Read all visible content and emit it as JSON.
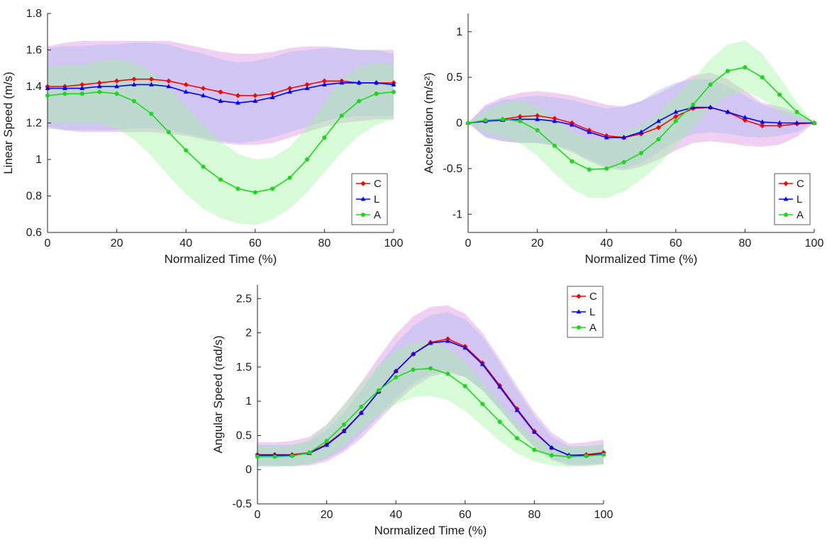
{
  "chart_data": [
    {
      "type": "line",
      "xlabel": "Normalized Time (%)",
      "ylabel": "Linear Speed (m/s)",
      "xlim": [
        0,
        100
      ],
      "ylim": [
        0.6,
        1.8
      ],
      "xticks": [
        "0",
        "20",
        "40",
        "60",
        "80",
        "100"
      ],
      "yticks": [
        "0.6",
        "0.8",
        "1",
        "1.2",
        "1.4",
        "1.6",
        "1.8"
      ],
      "legend_position": "bottom-right",
      "x": [
        0,
        5,
        10,
        15,
        20,
        25,
        30,
        35,
        40,
        45,
        50,
        55,
        60,
        65,
        70,
        75,
        80,
        85,
        90,
        95,
        100
      ],
      "series": [
        {
          "name": "C",
          "color": "#ff0000",
          "marker": "diamond",
          "values": [
            1.4,
            1.4,
            1.41,
            1.42,
            1.43,
            1.44,
            1.44,
            1.43,
            1.41,
            1.39,
            1.37,
            1.35,
            1.35,
            1.36,
            1.39,
            1.41,
            1.43,
            1.43,
            1.42,
            1.42,
            1.42
          ],
          "band": {
            "lower": [
              1.18,
              1.16,
              1.15,
              1.15,
              1.15,
              1.15,
              1.15,
              1.14,
              1.13,
              1.11,
              1.09,
              1.08,
              1.08,
              1.09,
              1.12,
              1.15,
              1.18,
              1.2,
              1.21,
              1.22,
              1.22
            ],
            "upper": [
              1.62,
              1.64,
              1.65,
              1.65,
              1.65,
              1.65,
              1.65,
              1.65,
              1.63,
              1.61,
              1.59,
              1.58,
              1.58,
              1.59,
              1.61,
              1.62,
              1.62,
              1.61,
              1.6,
              1.6,
              1.6
            ]
          }
        },
        {
          "name": "L",
          "color": "#0000ff",
          "marker": "triangle",
          "values": [
            1.39,
            1.39,
            1.39,
            1.4,
            1.4,
            1.41,
            1.41,
            1.4,
            1.37,
            1.35,
            1.32,
            1.31,
            1.32,
            1.34,
            1.37,
            1.39,
            1.41,
            1.42,
            1.42,
            1.42,
            1.41
          ],
          "band": {
            "lower": [
              1.17,
              1.16,
              1.16,
              1.16,
              1.16,
              1.17,
              1.17,
              1.16,
              1.14,
              1.12,
              1.1,
              1.09,
              1.1,
              1.12,
              1.15,
              1.18,
              1.21,
              1.23,
              1.24,
              1.24,
              1.24
            ],
            "upper": [
              1.61,
              1.62,
              1.62,
              1.63,
              1.63,
              1.64,
              1.64,
              1.63,
              1.6,
              1.58,
              1.55,
              1.53,
              1.54,
              1.56,
              1.59,
              1.6,
              1.61,
              1.61,
              1.6,
              1.6,
              1.58
            ]
          }
        },
        {
          "name": "A",
          "color": "#1ed61e",
          "marker": "circle",
          "values": [
            1.35,
            1.36,
            1.36,
            1.37,
            1.36,
            1.32,
            1.25,
            1.15,
            1.05,
            0.96,
            0.89,
            0.84,
            0.82,
            0.84,
            0.9,
            1.0,
            1.12,
            1.24,
            1.32,
            1.36,
            1.37
          ],
          "band": {
            "lower": [
              1.2,
              1.2,
              1.2,
              1.2,
              1.17,
              1.11,
              1.02,
              0.91,
              0.81,
              0.73,
              0.68,
              0.65,
              0.64,
              0.67,
              0.73,
              0.82,
              0.93,
              1.04,
              1.13,
              1.19,
              1.22
            ],
            "upper": [
              1.5,
              1.52,
              1.52,
              1.54,
              1.55,
              1.53,
              1.48,
              1.39,
              1.29,
              1.19,
              1.1,
              1.03,
              1.0,
              1.01,
              1.07,
              1.18,
              1.31,
              1.44,
              1.51,
              1.53,
              1.52
            ]
          }
        }
      ]
    },
    {
      "type": "line",
      "xlabel": "Normalized Time (%)",
      "ylabel": "Acceleration (m/s²)",
      "xlim": [
        0,
        100
      ],
      "ylim": [
        -1.2,
        1.2
      ],
      "xticks": [
        "0",
        "20",
        "40",
        "60",
        "80",
        "100"
      ],
      "yticks": [
        "-1",
        "-0.5",
        "0",
        "0.5",
        "1"
      ],
      "legend_position": "bottom-right",
      "x": [
        0,
        5,
        10,
        15,
        20,
        25,
        30,
        35,
        40,
        45,
        50,
        55,
        60,
        65,
        70,
        75,
        80,
        85,
        90,
        95,
        100
      ],
      "series": [
        {
          "name": "C",
          "color": "#ff0000",
          "marker": "diamond",
          "values": [
            0,
            0.02,
            0.04,
            0.07,
            0.08,
            0.05,
            0,
            -0.08,
            -0.14,
            -0.16,
            -0.12,
            -0.05,
            0.07,
            0.16,
            0.17,
            0.12,
            0.03,
            -0.03,
            -0.03,
            -0.01,
            0
          ],
          "band": {
            "lower": [
              0,
              -0.15,
              -0.2,
              -0.22,
              -0.22,
              -0.25,
              -0.32,
              -0.42,
              -0.5,
              -0.52,
              -0.48,
              -0.4,
              -0.3,
              -0.22,
              -0.2,
              -0.22,
              -0.25,
              -0.26,
              -0.24,
              -0.15,
              0
            ],
            "upper": [
              0,
              0.2,
              0.28,
              0.33,
              0.35,
              0.33,
              0.3,
              0.25,
              0.2,
              0.18,
              0.24,
              0.32,
              0.42,
              0.52,
              0.55,
              0.48,
              0.35,
              0.22,
              0.18,
              0.12,
              0
            ]
          }
        },
        {
          "name": "L",
          "color": "#0000ff",
          "marker": "triangle",
          "values": [
            0,
            0.02,
            0.03,
            0.04,
            0.04,
            0.02,
            -0.02,
            -0.1,
            -0.16,
            -0.16,
            -0.1,
            0.02,
            0.12,
            0.17,
            0.17,
            0.12,
            0.06,
            0.01,
            0,
            0,
            0
          ],
          "band": {
            "lower": [
              0,
              -0.16,
              -0.2,
              -0.22,
              -0.22,
              -0.24,
              -0.3,
              -0.4,
              -0.48,
              -0.5,
              -0.44,
              -0.32,
              -0.2,
              -0.12,
              -0.1,
              -0.12,
              -0.15,
              -0.16,
              -0.14,
              -0.1,
              0
            ],
            "upper": [
              0,
              0.18,
              0.25,
              0.28,
              0.3,
              0.28,
              0.25,
              0.2,
              0.16,
              0.18,
              0.24,
              0.36,
              0.44,
              0.48,
              0.48,
              0.4,
              0.3,
              0.2,
              0.14,
              0.1,
              0
            ]
          }
        },
        {
          "name": "A",
          "color": "#1ed61e",
          "marker": "circle",
          "values": [
            0,
            0.03,
            0.04,
            0.02,
            -0.08,
            -0.25,
            -0.42,
            -0.51,
            -0.5,
            -0.43,
            -0.33,
            -0.18,
            0.02,
            0.2,
            0.42,
            0.57,
            0.61,
            0.5,
            0.31,
            0.12,
            0
          ],
          "band": {
            "lower": [
              0,
              -0.1,
              -0.16,
              -0.22,
              -0.36,
              -0.55,
              -0.72,
              -0.82,
              -0.82,
              -0.75,
              -0.62,
              -0.46,
              -0.26,
              -0.05,
              0.16,
              0.3,
              0.34,
              0.26,
              0.12,
              0.04,
              0
            ],
            "upper": [
              0,
              0.14,
              0.22,
              0.24,
              0.18,
              0.05,
              -0.1,
              -0.18,
              -0.16,
              -0.1,
              -0.02,
              0.1,
              0.3,
              0.48,
              0.7,
              0.86,
              0.9,
              0.76,
              0.5,
              0.22,
              0
            ]
          }
        }
      ]
    },
    {
      "type": "line",
      "xlabel": "Normalized Time (%)",
      "ylabel": "Angular Speed (rad/s)",
      "xlim": [
        0,
        100
      ],
      "ylim": [
        -0.5,
        2.7
      ],
      "xticks": [
        "0",
        "20",
        "40",
        "60",
        "80",
        "100"
      ],
      "yticks": [
        "-0.5",
        "0",
        "0.5",
        "1",
        "1.5",
        "2",
        "2.5"
      ],
      "legend_position": "outside-top-right",
      "x": [
        0,
        5,
        10,
        15,
        20,
        25,
        30,
        35,
        40,
        45,
        50,
        55,
        60,
        65,
        70,
        75,
        80,
        85,
        90,
        95,
        100
      ],
      "series": [
        {
          "name": "C",
          "color": "#ff0000",
          "marker": "diamond",
          "values": [
            0.22,
            0.22,
            0.22,
            0.25,
            0.37,
            0.57,
            0.83,
            1.14,
            1.44,
            1.69,
            1.86,
            1.91,
            1.8,
            1.56,
            1.23,
            0.89,
            0.56,
            0.32,
            0.21,
            0.22,
            0.25
          ],
          "band": {
            "lower": [
              0.05,
              0.05,
              0.05,
              0.06,
              0.12,
              0.26,
              0.46,
              0.72,
              0.98,
              1.2,
              1.36,
              1.42,
              1.35,
              1.16,
              0.88,
              0.58,
              0.32,
              0.14,
              0.06,
              0.06,
              0.08
            ],
            "upper": [
              0.4,
              0.4,
              0.42,
              0.48,
              0.66,
              0.94,
              1.28,
              1.64,
              1.98,
              2.24,
              2.38,
              2.4,
              2.28,
              2.0,
              1.62,
              1.22,
              0.84,
              0.54,
              0.38,
              0.4,
              0.44
            ]
          }
        },
        {
          "name": "L",
          "color": "#0000ff",
          "marker": "triangle",
          "values": [
            0.21,
            0.21,
            0.21,
            0.24,
            0.36,
            0.56,
            0.83,
            1.14,
            1.44,
            1.69,
            1.85,
            1.88,
            1.78,
            1.54,
            1.21,
            0.87,
            0.55,
            0.32,
            0.21,
            0.21,
            0.23
          ],
          "band": {
            "lower": [
              0.06,
              0.06,
              0.06,
              0.08,
              0.16,
              0.3,
              0.52,
              0.78,
              1.04,
              1.26,
              1.4,
              1.44,
              1.36,
              1.16,
              0.88,
              0.6,
              0.34,
              0.16,
              0.08,
              0.08,
              0.09
            ],
            "upper": [
              0.36,
              0.36,
              0.36,
              0.42,
              0.58,
              0.84,
              1.16,
              1.52,
              1.84,
              2.1,
              2.26,
              2.3,
              2.2,
              1.94,
              1.56,
              1.16,
              0.78,
              0.48,
              0.34,
              0.34,
              0.37
            ]
          }
        },
        {
          "name": "A",
          "color": "#1ed61e",
          "marker": "circle",
          "values": [
            0.19,
            0.19,
            0.2,
            0.25,
            0.42,
            0.66,
            0.92,
            1.16,
            1.35,
            1.46,
            1.48,
            1.4,
            1.22,
            0.96,
            0.7,
            0.46,
            0.29,
            0.21,
            0.19,
            0.2,
            0.22
          ],
          "band": {
            "lower": [
              0.04,
              0.04,
              0.05,
              0.08,
              0.18,
              0.36,
              0.58,
              0.8,
              0.96,
              1.06,
              1.08,
              1.02,
              0.86,
              0.64,
              0.42,
              0.24,
              0.12,
              0.06,
              0.04,
              0.05,
              0.07
            ],
            "upper": [
              0.34,
              0.34,
              0.36,
              0.44,
              0.66,
              0.96,
              1.26,
              1.52,
              1.74,
              1.86,
              1.88,
              1.78,
              1.58,
              1.28,
              0.98,
              0.68,
              0.46,
              0.36,
              0.34,
              0.35,
              0.37
            ]
          }
        }
      ]
    }
  ]
}
